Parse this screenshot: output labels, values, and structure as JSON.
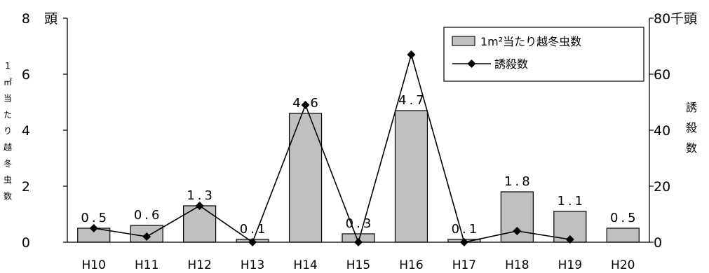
{
  "chart_data": {
    "type": "bar",
    "categories": [
      "H10",
      "H11",
      "H12",
      "H13",
      "H14",
      "H15",
      "H16",
      "H17",
      "H18",
      "H19",
      "H20"
    ],
    "series": [
      {
        "name": "1m²当たり越冬虫数",
        "type": "bar",
        "axis": "left",
        "values": [
          0.5,
          0.6,
          1.3,
          0.1,
          4.6,
          0.3,
          4.7,
          0.1,
          1.8,
          1.1,
          0.5
        ],
        "labels": [
          "0.5",
          "0.6",
          "1.3",
          "0.1",
          "4.6",
          "0.3",
          "4.7",
          "0.1",
          "1.8",
          "1.1",
          "0.5"
        ]
      },
      {
        "name": "誘殺数",
        "type": "line",
        "axis": "right",
        "values": [
          5,
          2,
          13,
          0,
          49,
          0,
          67,
          0,
          4,
          1,
          null
        ]
      }
    ],
    "y_left": {
      "ylim": [
        0,
        8
      ],
      "ticks": [
        "0",
        "2",
        "4",
        "6",
        "8"
      ],
      "unit": "頭",
      "label_chars": [
        "1",
        "㎡",
        "当",
        "た",
        "り",
        "越",
        "冬",
        "虫",
        "数"
      ]
    },
    "y_right": {
      "ylim": [
        0,
        80
      ],
      "ticks": [
        "0",
        "20",
        "40",
        "60",
        "80"
      ],
      "unit": "千頭",
      "label_chars": [
        "誘",
        "殺",
        "数"
      ]
    },
    "legend": {
      "position": "top-right"
    },
    "grid": false,
    "colors": {
      "bar_fill": "#c0c0c0",
      "bar_stroke": "#000000",
      "line": "#000000"
    }
  }
}
